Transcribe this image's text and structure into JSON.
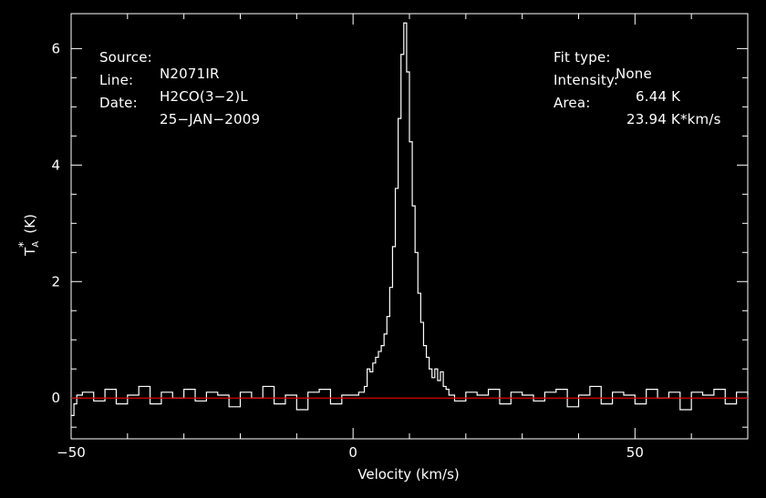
{
  "header": {
    "source_label": "Source:",
    "source_value": "N2071IR",
    "line_label": "Line:",
    "line_value": "H2CO(3−2)L",
    "date_label": "Date:",
    "date_value": "25−JAN−2009",
    "fit_label": "Fit type:",
    "fit_value": "None",
    "intensity_label": "Intensity:",
    "intensity_value": "6.44 K",
    "area_label": "Area:",
    "area_value": "23.94 K*km/s"
  },
  "chart_data": {
    "type": "line",
    "xlabel": "Velocity (km/s)",
    "ylabel": "T_A* (K)",
    "xlim": [
      -50,
      70
    ],
    "ylim": [
      -0.7,
      6.6
    ],
    "xticks": [
      "-50",
      "0",
      "50"
    ],
    "xtick_values": [
      -50,
      0,
      50
    ],
    "yticks": [
      "0",
      "2",
      "4",
      "6"
    ],
    "ytick_values": [
      0,
      2,
      4,
      6
    ],
    "baseline": 0,
    "series": [
      {
        "color": "#ffffff",
        "x": [
          -50,
          -49.5,
          -49,
          -48,
          -46,
          -44,
          -42,
          -40,
          -38,
          -36,
          -34,
          -32,
          -30,
          -28,
          -26,
          -24,
          -22,
          -20,
          -18,
          -16,
          -14,
          -12,
          -10,
          -8,
          -6,
          -4,
          -2,
          0,
          1,
          2,
          2.5,
          3,
          3.5,
          4,
          4.5,
          5,
          5.5,
          6,
          6.5,
          7,
          7.5,
          8,
          8.5,
          9,
          9.5,
          10,
          10.5,
          11,
          11.5,
          12,
          12.5,
          13,
          13.5,
          14,
          14.5,
          15,
          15.5,
          16,
          16.5,
          17,
          18,
          20,
          22,
          24,
          26,
          28,
          30,
          32,
          34,
          36,
          38,
          40,
          42,
          44,
          46,
          48,
          50,
          52,
          54,
          56,
          58,
          60,
          62,
          64,
          66,
          68,
          70
        ],
        "y": [
          -0.3,
          -0.1,
          0.05,
          0.1,
          -0.05,
          0.15,
          -0.1,
          0.05,
          0.2,
          -0.1,
          0.1,
          0.0,
          0.15,
          -0.05,
          0.1,
          0.05,
          -0.15,
          0.1,
          0.0,
          0.2,
          -0.1,
          0.05,
          -0.2,
          0.1,
          0.15,
          -0.1,
          0.05,
          0.05,
          0.1,
          0.2,
          0.5,
          0.45,
          0.6,
          0.7,
          0.8,
          0.9,
          1.1,
          1.4,
          1.9,
          2.6,
          3.6,
          4.8,
          5.9,
          6.44,
          5.6,
          4.4,
          3.3,
          2.5,
          1.8,
          1.3,
          0.9,
          0.7,
          0.5,
          0.35,
          0.5,
          0.3,
          0.45,
          0.2,
          0.15,
          0.05,
          -0.05,
          0.1,
          0.05,
          0.15,
          -0.1,
          0.1,
          0.05,
          -0.05,
          0.1,
          0.15,
          -0.15,
          0.05,
          0.2,
          -0.1,
          0.1,
          0.05,
          -0.1,
          0.15,
          0.0,
          0.1,
          -0.2,
          0.1,
          0.05,
          0.15,
          -0.1,
          0.1,
          0.05
        ]
      },
      {
        "color": "#d40000",
        "x": [
          -50,
          70
        ],
        "y": [
          0,
          0
        ]
      }
    ]
  }
}
